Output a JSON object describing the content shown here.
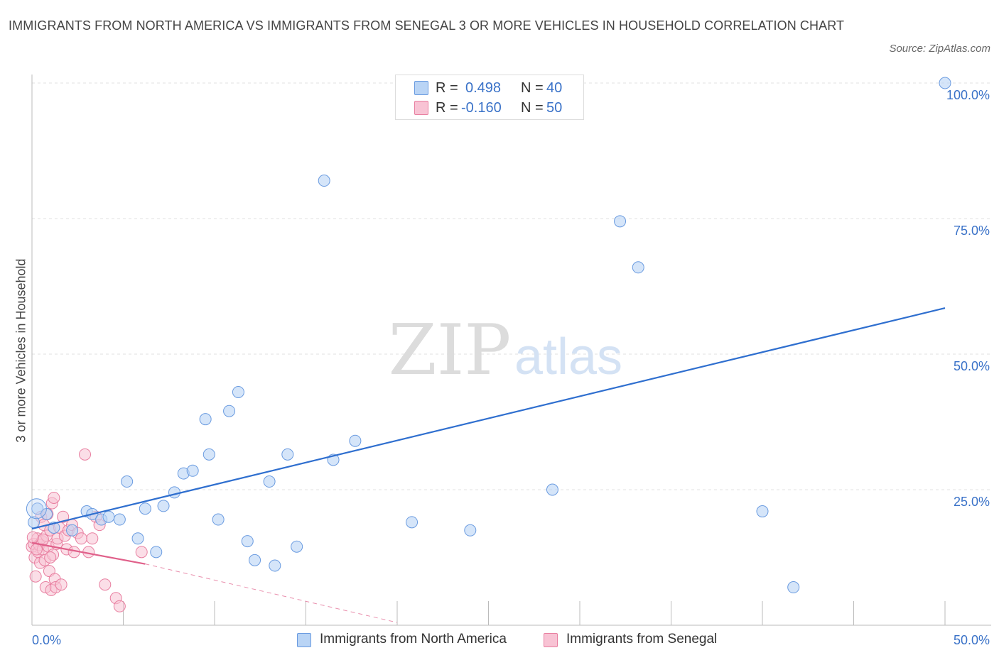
{
  "title": "IMMIGRANTS FROM NORTH AMERICA VS IMMIGRANTS FROM SENEGAL 3 OR MORE VEHICLES IN HOUSEHOLD CORRELATION CHART",
  "source": "Source: ZipAtlas.com",
  "watermark": {
    "zip": "ZIP",
    "atlas": "atlas"
  },
  "legend": {
    "rows": [
      {
        "r_label": "R =",
        "r_value": "0.498",
        "n_label": "N =",
        "n_value": "40"
      },
      {
        "r_label": "R =",
        "r_value": "-0.160",
        "n_label": "N =",
        "n_value": "50"
      }
    ]
  },
  "colors": {
    "series1_fill": "#b9d4f5",
    "series1_stroke": "#6a9be0",
    "series1_line": "#2f6fcf",
    "series2_fill": "#f8c3d4",
    "series2_stroke": "#e87fa0",
    "series2_line": "#e0608a",
    "axis_text": "#3a72c8"
  },
  "chart_data": {
    "type": "scatter",
    "title": "IMMIGRANTS FROM NORTH AMERICA VS IMMIGRANTS FROM SENEGAL 3 OR MORE VEHICLES IN HOUSEHOLD CORRELATION CHART",
    "xlabel": "",
    "ylabel": "3 or more Vehicles in Household",
    "xlim": [
      0,
      50
    ],
    "ylim": [
      0,
      100
    ],
    "x_tick_labels": [
      "0.0%",
      "50.0%"
    ],
    "y_tick_labels": [
      "25.0%",
      "50.0%",
      "75.0%",
      "100.0%"
    ],
    "y_ticks": [
      25,
      50,
      75,
      100
    ],
    "grid": true,
    "series": [
      {
        "name": "Immigrants from North America",
        "R": 0.498,
        "N": 40,
        "trend": [
          [
            0,
            17.8
          ],
          [
            50,
            58.5
          ]
        ],
        "points": [
          [
            0.3,
            21.5
          ],
          [
            0.8,
            20.5
          ],
          [
            1.2,
            18.0
          ],
          [
            2.2,
            17.5
          ],
          [
            3.0,
            21.0
          ],
          [
            3.3,
            20.5
          ],
          [
            3.8,
            19.5
          ],
          [
            4.2,
            20.0
          ],
          [
            4.8,
            19.5
          ],
          [
            5.2,
            26.5
          ],
          [
            5.8,
            16.0
          ],
          [
            6.2,
            21.5
          ],
          [
            6.8,
            13.5
          ],
          [
            7.2,
            22.0
          ],
          [
            7.8,
            24.5
          ],
          [
            8.3,
            28.0
          ],
          [
            8.8,
            28.5
          ],
          [
            9.5,
            38.0
          ],
          [
            9.7,
            31.5
          ],
          [
            10.2,
            19.5
          ],
          [
            10.8,
            39.5
          ],
          [
            11.3,
            43.0
          ],
          [
            11.8,
            15.5
          ],
          [
            12.2,
            12.0
          ],
          [
            13.0,
            26.5
          ],
          [
            13.3,
            11.0
          ],
          [
            14.0,
            31.5
          ],
          [
            14.5,
            14.5
          ],
          [
            16.0,
            82.0
          ],
          [
            16.5,
            30.5
          ],
          [
            17.7,
            34.0
          ],
          [
            20.8,
            19.0
          ],
          [
            24.0,
            17.5
          ],
          [
            28.5,
            25.0
          ],
          [
            32.2,
            74.5
          ],
          [
            33.2,
            66.0
          ],
          [
            40.0,
            21.0
          ],
          [
            41.7,
            7.0
          ],
          [
            50.0,
            100.0
          ],
          [
            0.1,
            19.0
          ]
        ]
      },
      {
        "name": "Immigrants from Senegal",
        "R": -0.16,
        "N": 50,
        "trend_solid": [
          [
            0,
            15.2
          ],
          [
            6.2,
            11.3
          ]
        ],
        "trend_dashed": [
          [
            6.2,
            11.3
          ],
          [
            20.0,
            0.5
          ]
        ],
        "points": [
          [
            0.0,
            14.5
          ],
          [
            0.1,
            15.0
          ],
          [
            0.15,
            12.5
          ],
          [
            0.2,
            9.0
          ],
          [
            0.3,
            16.0
          ],
          [
            0.35,
            13.5
          ],
          [
            0.4,
            14.8
          ],
          [
            0.45,
            11.5
          ],
          [
            0.5,
            20.0
          ],
          [
            0.55,
            15.5
          ],
          [
            0.6,
            14.0
          ],
          [
            0.65,
            18.5
          ],
          [
            0.7,
            12.0
          ],
          [
            0.75,
            7.0
          ],
          [
            0.8,
            16.5
          ],
          [
            0.85,
            20.5
          ],
          [
            0.9,
            14.5
          ],
          [
            0.95,
            10.0
          ],
          [
            1.0,
            17.5
          ],
          [
            1.05,
            6.5
          ],
          [
            1.1,
            22.5
          ],
          [
            1.15,
            13.0
          ],
          [
            1.2,
            23.5
          ],
          [
            1.25,
            8.5
          ],
          [
            1.3,
            7.0
          ],
          [
            1.35,
            15.0
          ],
          [
            1.4,
            16.0
          ],
          [
            1.5,
            18.0
          ],
          [
            1.6,
            7.5
          ],
          [
            1.7,
            20.0
          ],
          [
            1.8,
            16.5
          ],
          [
            1.9,
            14.0
          ],
          [
            2.0,
            17.5
          ],
          [
            2.2,
            18.5
          ],
          [
            2.3,
            13.5
          ],
          [
            2.5,
            17.0
          ],
          [
            2.7,
            16.0
          ],
          [
            2.9,
            31.5
          ],
          [
            3.1,
            13.5
          ],
          [
            3.3,
            16.0
          ],
          [
            3.5,
            20.0
          ],
          [
            3.7,
            18.5
          ],
          [
            4.0,
            7.5
          ],
          [
            4.6,
            5.0
          ],
          [
            4.8,
            3.5
          ],
          [
            6.0,
            13.5
          ],
          [
            0.25,
            14.0
          ],
          [
            0.6,
            15.8
          ],
          [
            1.0,
            12.5
          ],
          [
            0.05,
            16.2
          ]
        ]
      }
    ]
  }
}
